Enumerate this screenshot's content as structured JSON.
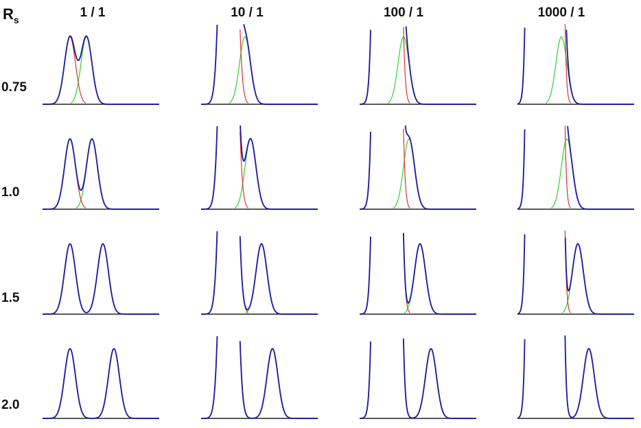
{
  "chart_data": {
    "type": "line",
    "corner_label": {
      "main": "R",
      "sub": "s"
    },
    "column_headers": [
      "1 / 1",
      "10 / 1",
      "100 / 1",
      "1000 / 1"
    ],
    "row_labels": [
      "0.75",
      "1.0",
      "1.5",
      "2.0"
    ],
    "resolution_values": [
      0.75,
      1.0,
      1.5,
      2.0
    ],
    "ratio_values": [
      1,
      10,
      100,
      1000
    ],
    "peak_sigma": 1.0,
    "visible_height_cap": 1.2,
    "series_colors": {
      "sum": "#1f1fa0",
      "major_peak": "#e03030",
      "minor_peak": "#30d030",
      "baseline": "#222222"
    },
    "grid": false,
    "legend": "none"
  }
}
